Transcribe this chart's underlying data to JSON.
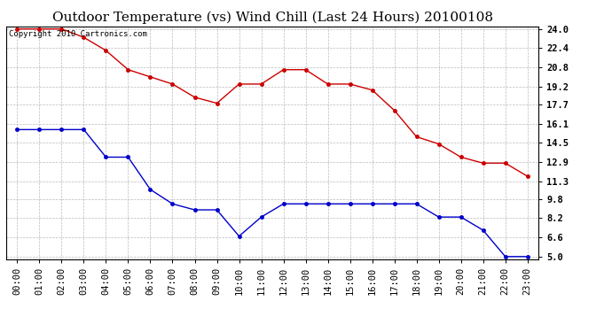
{
  "title": "Outdoor Temperature (vs) Wind Chill (Last 24 Hours) 20100108",
  "copyright_text": "Copyright 2010 Cartronics.com",
  "x_labels": [
    "00:00",
    "01:00",
    "02:00",
    "03:00",
    "04:00",
    "05:00",
    "06:00",
    "07:00",
    "08:00",
    "09:00",
    "10:00",
    "11:00",
    "12:00",
    "13:00",
    "14:00",
    "15:00",
    "16:00",
    "17:00",
    "18:00",
    "19:00",
    "20:00",
    "21:00",
    "22:00",
    "23:00"
  ],
  "temp_data": [
    24.0,
    24.0,
    24.0,
    23.3,
    22.2,
    20.6,
    20.0,
    19.4,
    18.3,
    17.8,
    19.4,
    19.4,
    20.6,
    20.6,
    19.4,
    19.4,
    18.9,
    17.2,
    15.0,
    14.4,
    13.3,
    12.8,
    12.8,
    11.7
  ],
  "windchill_data": [
    15.6,
    15.6,
    15.6,
    15.6,
    13.3,
    13.3,
    10.6,
    9.4,
    8.9,
    8.9,
    6.7,
    8.3,
    9.4,
    9.4,
    9.4,
    9.4,
    9.4,
    9.4,
    9.4,
    8.3,
    8.3,
    7.2,
    5.0,
    5.0
  ],
  "temp_color": "#cc0000",
  "windchill_color": "#0000cc",
  "ylim_min": 5.0,
  "ylim_max": 24.0,
  "yticks": [
    5.0,
    6.6,
    8.2,
    9.8,
    11.3,
    12.9,
    14.5,
    16.1,
    17.7,
    19.2,
    20.8,
    22.4,
    24.0
  ],
  "background_color": "#ffffff",
  "plot_bg_color": "#ffffff",
  "grid_color": "#aaaaaa",
  "title_fontsize": 11,
  "axis_fontsize": 7.5,
  "copyright_fontsize": 6.5
}
